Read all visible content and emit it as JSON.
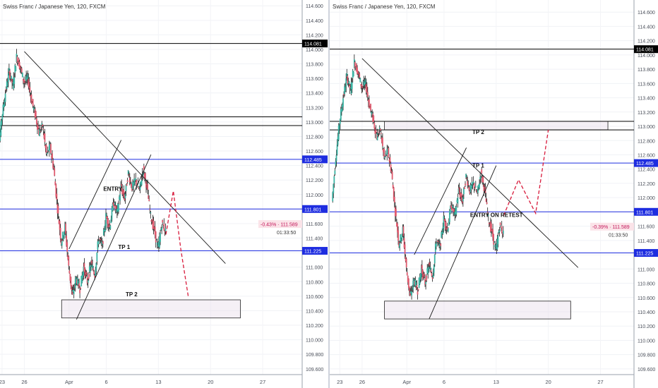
{
  "charts": [
    {
      "title": "Swiss Franc / Japanese Yen, 120, FXCM",
      "price_label": "-0.43% · 111.589",
      "timer": "01:33:50",
      "annotations": [
        {
          "text": "ENTRY",
          "x": 14.6,
          "y": 112.05
        },
        {
          "text": "TP 1",
          "x": 16.6,
          "y": 111.25
        },
        {
          "text": "TP 2",
          "x": 17.6,
          "y": 110.6
        }
      ]
    },
    {
      "title": "Swiss Franc / Japanese Yen, 120, FXCM",
      "price_label": "-0.39% · 111.589",
      "timer": "01:33:50",
      "annotations": [
        {
          "text": "ENTRY ON RETEST",
          "x": 18.5,
          "y": 111.73
        },
        {
          "text": "TP 2",
          "x": 18.8,
          "y": 112.89
        },
        {
          "text": "TP 1",
          "x": 18.8,
          "y": 112.42
        }
      ]
    }
  ],
  "chart_data": [
    {
      "type": "candlestick",
      "title": "Swiss Franc / Japanese Yen, 120, FXCM",
      "x_tick_labels": [
        "23",
        "26",
        "Apr",
        "6",
        "13",
        "20",
        "27"
      ],
      "xlim": [
        "Mar 22",
        "Apr 28"
      ],
      "y_tick_labels": [
        "109.600",
        "109.800",
        "110.000",
        "110.200",
        "110.400",
        "110.600",
        "110.800",
        "111.000",
        "111.200",
        "111.400",
        "111.600",
        "111.800",
        "112.000",
        "112.200",
        "112.400",
        "112.600",
        "112.800",
        "113.000",
        "113.200",
        "113.400",
        "113.600",
        "113.800",
        "114.000",
        "114.200",
        "114.400",
        "114.600"
      ],
      "ylim": [
        109.52,
        114.68
      ],
      "price_levels": [
        {
          "label": "114.081",
          "y": 114.081,
          "color": "#000000"
        },
        {
          "y": 113.07,
          "color": "#000000"
        },
        {
          "y": 112.95,
          "color": "#000000"
        },
        {
          "label": "112.485",
          "y": 112.485,
          "color": "#1e2de0"
        },
        {
          "label": "111.801",
          "y": 111.801,
          "color": "#1e2de0"
        },
        {
          "label": "111.225",
          "y": 111.225,
          "color": "#1e2de0"
        }
      ],
      "current_price": 111.589,
      "zones": [
        {
          "x1": "Mar 31",
          "x2": "Apr 24",
          "y1": 110.3,
          "y2": 110.55
        }
      ],
      "trendlines": [
        {
          "from": [
            "Mar 26",
            113.97
          ],
          "to": [
            "Apr 22",
            111.05
          ]
        },
        {
          "from": [
            "Apr 1",
            111.25
          ],
          "to": [
            "Apr 8",
            112.75
          ]
        },
        {
          "from": [
            "Apr 2",
            110.28
          ],
          "to": [
            "Apr 12",
            112.55
          ]
        }
      ],
      "projection": [
        [
          "Apr 14",
          111.45
        ],
        [
          "Apr 15",
          112.05
        ],
        [
          "Apr 16",
          111.25
        ],
        [
          "Apr 17",
          110.6
        ]
      ],
      "price_path": [
        [
          "Mar 22",
          111.95
        ],
        [
          "Mar 22.5",
          112.55
        ],
        [
          "Mar 23",
          113.05
        ],
        [
          "Mar 23.5",
          113.4
        ],
        [
          "Mar 24",
          113.7
        ],
        [
          "Mar 24.5",
          113.5
        ],
        [
          "Mar 25",
          113.9
        ],
        [
          "Mar 25.5",
          113.75
        ],
        [
          "Mar 26",
          113.55
        ],
        [
          "Mar 26.5",
          113.6
        ],
        [
          "Mar 27",
          113.3
        ],
        [
          "Mar 27.5",
          113.1
        ],
        [
          "Mar 28",
          112.85
        ],
        [
          "Mar 28.5",
          112.95
        ],
        [
          "Mar 29",
          112.55
        ],
        [
          "Mar 29.5",
          112.65
        ],
        [
          "Mar 30",
          112.35
        ],
        [
          "Mar 30.5",
          111.8
        ],
        [
          "Mar 31",
          111.35
        ],
        [
          "Mar 31.5",
          111.55
        ],
        [
          "Apr 1",
          111.0
        ],
        [
          "Apr 1.5",
          110.6
        ],
        [
          "Apr 2",
          110.85
        ],
        [
          "Apr 2.5",
          110.7
        ],
        [
          "Apr 3",
          111.0
        ],
        [
          "Apr 3.5",
          110.8
        ],
        [
          "Apr 4",
          111.05
        ],
        [
          "Apr 4.5",
          110.9
        ],
        [
          "Apr 5",
          111.4
        ],
        [
          "Apr 5.5",
          111.3
        ],
        [
          "Apr 6",
          111.7
        ],
        [
          "Apr 6.5",
          111.55
        ],
        [
          "Apr 7",
          111.9
        ],
        [
          "Apr 7.5",
          111.75
        ],
        [
          "Apr 8",
          112.1
        ],
        [
          "Apr 8.5",
          111.95
        ],
        [
          "Apr 9",
          112.3
        ],
        [
          "Apr 9.5",
          112.1
        ],
        [
          "Apr 10",
          112.2
        ],
        [
          "Apr 10.5",
          112.05
        ],
        [
          "Apr 11",
          112.35
        ],
        [
          "Apr 11.5",
          112.1
        ],
        [
          "Apr 12",
          111.7
        ],
        [
          "Apr 12.5",
          111.5
        ],
        [
          "Apr 13",
          111.25
        ],
        [
          "Apr 13.5",
          111.6
        ],
        [
          "Apr 14",
          111.5
        ]
      ]
    },
    {
      "type": "candlestick",
      "title": "Swiss Franc / Japanese Yen, 120, FXCM",
      "x_tick_labels": [
        "23",
        "26",
        "Apr",
        "6",
        "13",
        "20",
        "27"
      ],
      "xlim": [
        "Mar 22",
        "Apr 28"
      ],
      "y_tick_labels": [
        "109.600",
        "109.800",
        "110.000",
        "110.200",
        "110.400",
        "110.600",
        "110.800",
        "111.000",
        "111.200",
        "111.400",
        "111.600",
        "111.800",
        "112.000",
        "112.200",
        "112.400",
        "112.600",
        "112.800",
        "113.000",
        "113.200",
        "113.400",
        "113.600",
        "113.800",
        "114.000",
        "114.200",
        "114.400",
        "114.600"
      ],
      "ylim": [
        109.52,
        114.77
      ],
      "price_levels": [
        {
          "label": "114.081",
          "y": 114.081,
          "color": "#000000"
        },
        {
          "y": 113.07,
          "color": "#000000"
        },
        {
          "y": 112.95,
          "color": "#000000"
        },
        {
          "label": "112.485",
          "y": 112.485,
          "color": "#1e2de0"
        },
        {
          "label": "111.801",
          "y": 111.801,
          "color": "#1e2de0"
        },
        {
          "label": "111.225",
          "y": 111.225,
          "color": "#1e2de0"
        }
      ],
      "current_price": 111.589,
      "zones": [
        {
          "x1": "Mar 29",
          "x2": "Apr 23",
          "y1": 110.3,
          "y2": 110.55
        },
        {
          "x1": "Mar 29",
          "x2": "Apr 28",
          "y1": 112.95,
          "y2": 113.07
        }
      ],
      "trendlines": [
        {
          "from": [
            "Mar 26",
            113.95
          ],
          "to": [
            "Apr 24",
            111.02
          ]
        },
        {
          "from": [
            "Apr 2",
            111.2
          ],
          "to": [
            "Apr 9",
            112.7
          ]
        },
        {
          "from": [
            "Apr 4",
            110.3
          ],
          "to": [
            "Apr 13",
            112.45
          ]
        }
      ],
      "projection": [
        [
          "Apr 14",
          111.75
        ],
        [
          "Apr 16",
          112.25
        ],
        [
          "Apr 18.3",
          111.78
        ],
        [
          "Apr 20",
          112.95
        ]
      ],
      "price_path": [
        [
          "Mar 22",
          111.95
        ],
        [
          "Mar 22.5",
          112.55
        ],
        [
          "Mar 23",
          113.05
        ],
        [
          "Mar 23.5",
          113.4
        ],
        [
          "Mar 24",
          113.7
        ],
        [
          "Mar 24.5",
          113.5
        ],
        [
          "Mar 25",
          113.9
        ],
        [
          "Mar 25.5",
          113.75
        ],
        [
          "Mar 26",
          113.55
        ],
        [
          "Mar 26.5",
          113.6
        ],
        [
          "Mar 27",
          113.3
        ],
        [
          "Mar 27.5",
          113.1
        ],
        [
          "Mar 28",
          112.85
        ],
        [
          "Mar 28.5",
          112.95
        ],
        [
          "Mar 29",
          112.55
        ],
        [
          "Mar 29.5",
          112.65
        ],
        [
          "Mar 30",
          112.35
        ],
        [
          "Mar 30.5",
          111.8
        ],
        [
          "Mar 31",
          111.35
        ],
        [
          "Mar 31.5",
          111.55
        ],
        [
          "Apr 1",
          111.0
        ],
        [
          "Apr 1.5",
          110.6
        ],
        [
          "Apr 2",
          110.85
        ],
        [
          "Apr 2.5",
          110.7
        ],
        [
          "Apr 3",
          111.0
        ],
        [
          "Apr 3.5",
          110.8
        ],
        [
          "Apr 4",
          111.05
        ],
        [
          "Apr 4.5",
          110.9
        ],
        [
          "Apr 5",
          111.4
        ],
        [
          "Apr 5.5",
          111.3
        ],
        [
          "Apr 6",
          111.7
        ],
        [
          "Apr 6.5",
          111.55
        ],
        [
          "Apr 7",
          111.9
        ],
        [
          "Apr 7.5",
          111.75
        ],
        [
          "Apr 8",
          112.1
        ],
        [
          "Apr 8.5",
          111.95
        ],
        [
          "Apr 9",
          112.3
        ],
        [
          "Apr 9.5",
          112.1
        ],
        [
          "Apr 10",
          112.2
        ],
        [
          "Apr 10.5",
          112.05
        ],
        [
          "Apr 11",
          112.35
        ],
        [
          "Apr 11.5",
          112.1
        ],
        [
          "Apr 12",
          111.7
        ],
        [
          "Apr 12.5",
          111.5
        ],
        [
          "Apr 13",
          111.25
        ],
        [
          "Apr 13.5",
          111.6
        ],
        [
          "Apr 14",
          111.5
        ]
      ]
    }
  ]
}
